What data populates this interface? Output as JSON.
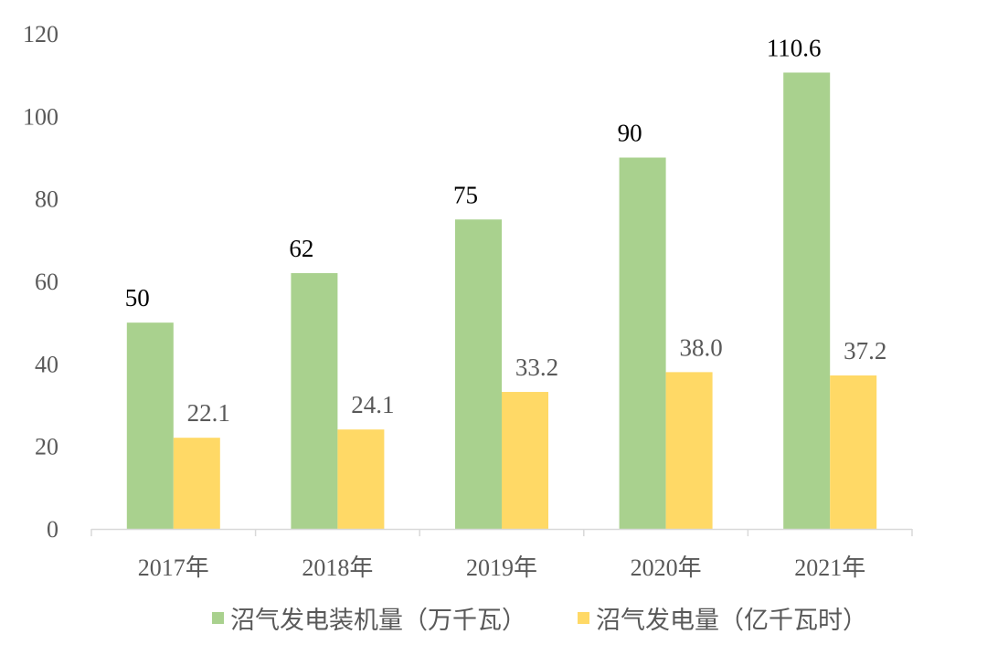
{
  "chart_data": {
    "type": "bar",
    "title": "",
    "xlabel": "",
    "ylabel": "",
    "ylim": [
      0,
      120
    ],
    "yticks": [
      0,
      20,
      40,
      60,
      80,
      100,
      120
    ],
    "ytick_labels": [
      "0",
      "20",
      "40",
      "60",
      "80",
      "100",
      "120"
    ],
    "grid": false,
    "legend_position": "bottom",
    "categories": [
      "2017年",
      "2018年",
      "2019年",
      "2020年",
      "2021年"
    ],
    "series": [
      {
        "name": "沼气发电装机量（万千瓦）",
        "color": "#a9d18e",
        "values": [
          50,
          62,
          75,
          90,
          110.6
        ],
        "labels": [
          "50",
          "62",
          "75",
          "90",
          "110.6"
        ]
      },
      {
        "name": "沼气发电量（亿千瓦时）",
        "color": "#ffd966",
        "values": [
          22.1,
          24.1,
          33.2,
          38.0,
          37.2
        ],
        "labels": [
          "22.1",
          "24.1",
          "33.2",
          "38.0",
          "37.2"
        ]
      }
    ]
  }
}
